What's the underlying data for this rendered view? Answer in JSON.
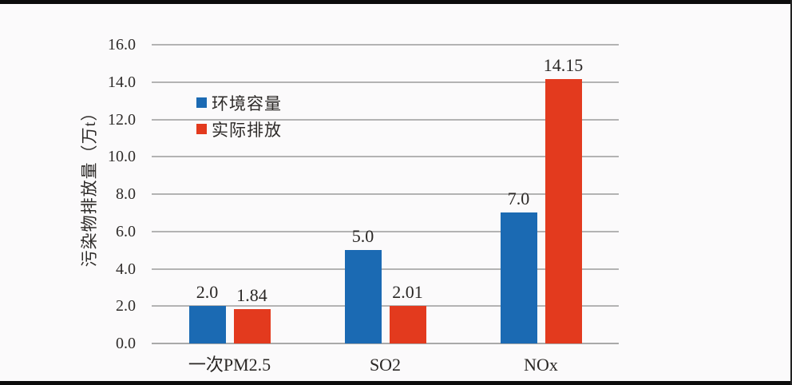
{
  "frame": {
    "background": "#fbfafb",
    "letterbox_color": "#0c0c0c"
  },
  "chart_data": {
    "type": "bar",
    "title": "",
    "y_axis_title": "污染物排放量（万t）",
    "categories": [
      "一次PM2.5",
      "SO2",
      "NOx"
    ],
    "category_ids": [
      "pm25",
      "so2",
      "nox"
    ],
    "series": [
      {
        "id": "capacity",
        "name": "环境容量",
        "color": "#1b6ab3",
        "values": [
          2.0,
          5.0,
          7.0
        ],
        "value_labels": [
          "2.0",
          "5.0",
          "7.0"
        ]
      },
      {
        "id": "actual",
        "name": "实际排放",
        "color": "#e33a1e",
        "values": [
          1.84,
          2.01,
          14.15
        ],
        "value_labels": [
          "1.84",
          "2.01",
          "14.15"
        ]
      }
    ],
    "ylim": [
      0,
      16
    ],
    "y_tick_values": [
      16,
      14,
      12,
      10,
      8,
      6,
      4,
      2,
      0
    ],
    "y_tick_labels": [
      "16.0",
      "14.0",
      "12.0",
      "10.0",
      "8.0",
      "6.0",
      "4.0",
      "2.0",
      "0.0"
    ],
    "grid": "horizontal",
    "gridline_color": "#b3b3b3",
    "axis_line_color": "#a9a9a9",
    "legend_position": "upper-left-inside",
    "text_color": "#2e2b29"
  }
}
